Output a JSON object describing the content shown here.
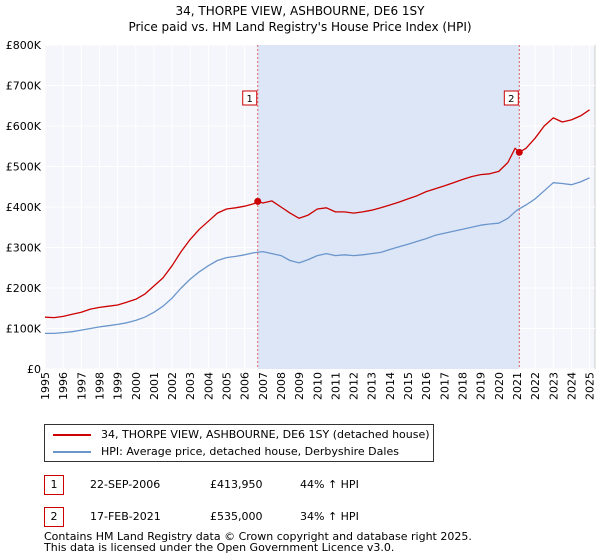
{
  "chart_data": {
    "type": "line",
    "title": "34, THORPE VIEW, ASHBOURNE, DE6 1SY",
    "subtitle": "Price paid vs. HM Land Registry's House Price Index (HPI)",
    "xlabel": "",
    "ylabel": "",
    "xlim": [
      1995,
      2025.3
    ],
    "ylim": [
      0,
      800000
    ],
    "grid": true,
    "x_ticks": [
      "1995",
      "1996",
      "1997",
      "1998",
      "1999",
      "2000",
      "2001",
      "2002",
      "2003",
      "2004",
      "2005",
      "2006",
      "2007",
      "2008",
      "2009",
      "2010",
      "2011",
      "2012",
      "2013",
      "2014",
      "2015",
      "2016",
      "2017",
      "2018",
      "2019",
      "2020",
      "2021",
      "2022",
      "2023",
      "2024",
      "2025"
    ],
    "y_ticks": [
      {
        "value": 0,
        "label": "£0"
      },
      {
        "value": 100000,
        "label": "£100K"
      },
      {
        "value": 200000,
        "label": "£200K"
      },
      {
        "value": 300000,
        "label": "£300K"
      },
      {
        "value": 400000,
        "label": "£400K"
      },
      {
        "value": 500000,
        "label": "£500K"
      },
      {
        "value": 600000,
        "label": "£600K"
      },
      {
        "value": 700000,
        "label": "£700K"
      },
      {
        "value": 800000,
        "label": "£800K"
      }
    ],
    "shaded_region": {
      "from": 2006.72,
      "to": 2021.13,
      "color": "#dde6f6"
    },
    "series": [
      {
        "name": "34, THORPE VIEW, ASHBOURNE, DE6 1SY (detached house)",
        "color": "#cc0000",
        "x": [
          1995.0,
          1995.5,
          1996.0,
          1996.5,
          1997.0,
          1997.5,
          1998.0,
          1998.5,
          1999.0,
          1999.5,
          2000.0,
          2000.5,
          2001.0,
          2001.5,
          2002.0,
          2002.5,
          2003.0,
          2003.5,
          2004.0,
          2004.5,
          2005.0,
          2005.5,
          2006.0,
          2006.5,
          2006.72,
          2007.0,
          2007.5,
          2008.0,
          2008.5,
          2009.0,
          2009.5,
          2010.0,
          2010.5,
          2011.0,
          2011.5,
          2012.0,
          2012.5,
          2013.0,
          2013.5,
          2014.0,
          2014.5,
          2015.0,
          2015.5,
          2016.0,
          2016.5,
          2017.0,
          2017.5,
          2018.0,
          2018.5,
          2019.0,
          2019.5,
          2020.0,
          2020.5,
          2020.9,
          2021.13,
          2021.5,
          2022.0,
          2022.5,
          2023.0,
          2023.5,
          2024.0,
          2024.5,
          2025.0
        ],
        "values": [
          128000,
          127000,
          130000,
          135000,
          140000,
          148000,
          152000,
          155000,
          158000,
          165000,
          172000,
          185000,
          205000,
          225000,
          255000,
          290000,
          320000,
          345000,
          365000,
          385000,
          395000,
          398000,
          402000,
          408000,
          413950,
          410000,
          415000,
          400000,
          385000,
          372000,
          380000,
          395000,
          398000,
          388000,
          388000,
          385000,
          388000,
          392000,
          398000,
          405000,
          412000,
          420000,
          428000,
          438000,
          445000,
          452000,
          460000,
          468000,
          475000,
          480000,
          482000,
          488000,
          510000,
          545000,
          535000,
          545000,
          570000,
          600000,
          620000,
          610000,
          615000,
          625000,
          640000
        ]
      },
      {
        "name": "HPI: Average price, detached house, Derbyshire Dales",
        "color": "#6a96cc",
        "x": [
          1995.0,
          1995.5,
          1996.0,
          1996.5,
          1997.0,
          1997.5,
          1998.0,
          1998.5,
          1999.0,
          1999.5,
          2000.0,
          2000.5,
          2001.0,
          2001.5,
          2002.0,
          2002.5,
          2003.0,
          2003.5,
          2004.0,
          2004.5,
          2005.0,
          2005.5,
          2006.0,
          2006.5,
          2007.0,
          2007.5,
          2008.0,
          2008.5,
          2009.0,
          2009.5,
          2010.0,
          2010.5,
          2011.0,
          2011.5,
          2012.0,
          2012.5,
          2013.0,
          2013.5,
          2014.0,
          2014.5,
          2015.0,
          2015.5,
          2016.0,
          2016.5,
          2017.0,
          2017.5,
          2018.0,
          2018.5,
          2019.0,
          2019.5,
          2020.0,
          2020.5,
          2021.0,
          2021.5,
          2022.0,
          2022.5,
          2023.0,
          2023.5,
          2024.0,
          2024.5,
          2025.0
        ],
        "values": [
          88000,
          88000,
          90000,
          92000,
          96000,
          100000,
          104000,
          107000,
          110000,
          114000,
          120000,
          128000,
          140000,
          155000,
          175000,
          200000,
          222000,
          240000,
          255000,
          268000,
          275000,
          278000,
          282000,
          287000,
          290000,
          285000,
          280000,
          268000,
          262000,
          270000,
          280000,
          285000,
          280000,
          282000,
          280000,
          282000,
          285000,
          288000,
          295000,
          302000,
          308000,
          315000,
          322000,
          330000,
          335000,
          340000,
          345000,
          350000,
          355000,
          358000,
          360000,
          372000,
          392000,
          405000,
          420000,
          440000,
          460000,
          458000,
          455000,
          462000,
          472000
        ]
      }
    ],
    "markers": [
      {
        "id": "1",
        "x": 2006.72,
        "value": 413950,
        "color": "#cc0000"
      },
      {
        "id": "2",
        "x": 2021.13,
        "value": 535000,
        "color": "#cc0000"
      }
    ]
  },
  "legend": {
    "items": [
      {
        "label": "34, THORPE VIEW, ASHBOURNE, DE6 1SY (detached house)",
        "color": "#cc0000"
      },
      {
        "label": "HPI: Average price, detached house, Derbyshire Dales",
        "color": "#6a96cc"
      }
    ]
  },
  "transactions": [
    {
      "id": "1",
      "date": "22-SEP-2006",
      "price": "£413,950",
      "hpi": "44% ↑ HPI"
    },
    {
      "id": "2",
      "date": "17-FEB-2021",
      "price": "£535,000",
      "hpi": "34% ↑ HPI"
    }
  ],
  "footer": {
    "line1": "Contains HM Land Registry data © Crown copyright and database right 2025.",
    "line2": "This data is licensed under the Open Government Licence v3.0."
  }
}
